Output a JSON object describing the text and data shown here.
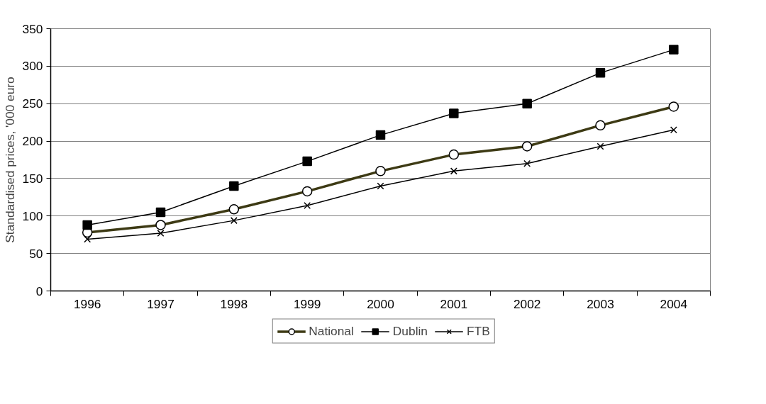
{
  "chart_data": {
    "type": "line",
    "ylabel": "Standardised prices, '000 euro",
    "categories": [
      "1996",
      "1997",
      "1998",
      "1999",
      "2000",
      "2001",
      "2002",
      "2003",
      "2004"
    ],
    "series": [
      {
        "name": "National",
        "color": "#3d3a14",
        "marker": "circle",
        "values": [
          78,
          88,
          109,
          133,
          160,
          182,
          193,
          221,
          246
        ]
      },
      {
        "name": "Dublin",
        "color": "#000000",
        "marker": "square",
        "values": [
          88,
          105,
          140,
          173,
          208,
          237,
          250,
          291,
          322
        ]
      },
      {
        "name": "FTB",
        "color": "#000000",
        "marker": "cross",
        "values": [
          69,
          77,
          94,
          114,
          140,
          160,
          170,
          193,
          215
        ]
      }
    ],
    "ylim": [
      0,
      350
    ],
    "yticks": [
      0,
      50,
      100,
      150,
      200,
      250,
      300,
      350
    ],
    "grid": "y",
    "legend": "bottom",
    "line_style": "solid"
  }
}
